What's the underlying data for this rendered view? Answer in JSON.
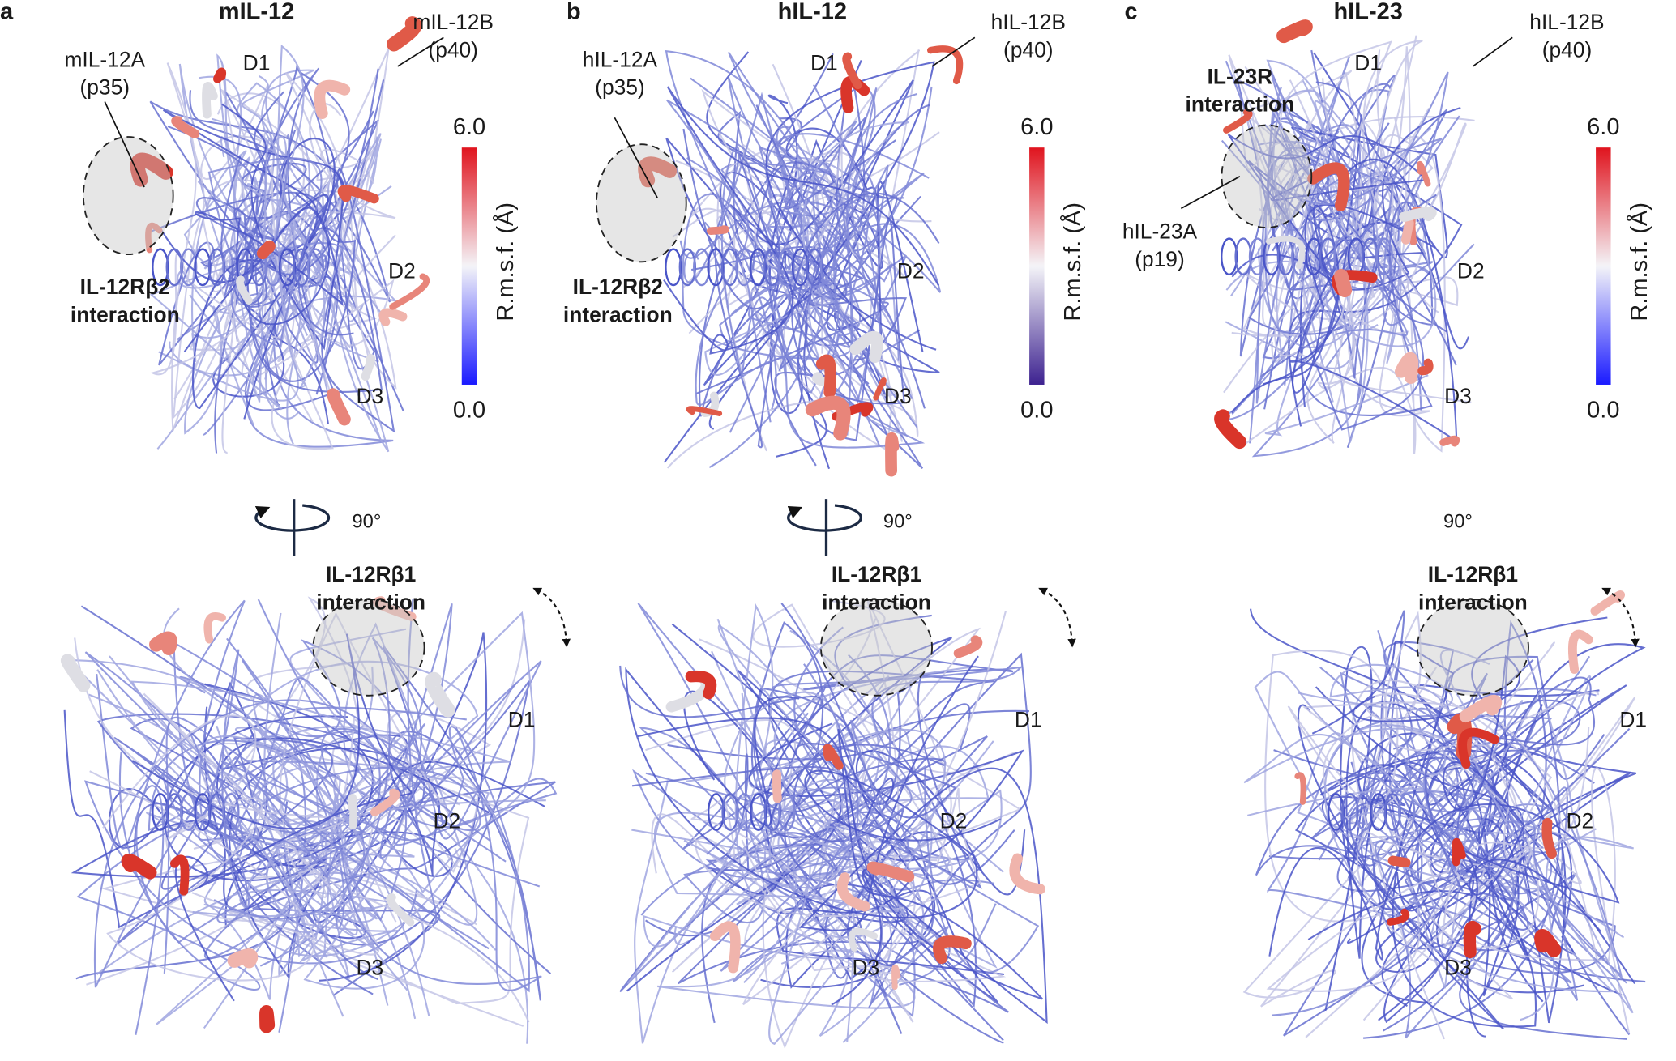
{
  "panels": [
    {
      "letter": "a",
      "title": "mIL-12",
      "subunit_a": [
        "mIL-12A",
        "(p35)"
      ],
      "subunit_b": [
        "mIL-12B",
        "(p40)"
      ],
      "interface_top": [
        "IL-12Rβ2",
        "interaction"
      ],
      "domains_top": [
        "D1",
        "D2",
        "D3"
      ],
      "colorbar": {
        "label": "R.m.s.f. (Å)",
        "max": "6.0",
        "min": "0.0"
      },
      "rotation": "90°",
      "interface_bottom": [
        "IL-12Rβ1",
        "interaction"
      ],
      "domains_bottom": [
        "D1",
        "D2",
        "D3"
      ]
    },
    {
      "letter": "b",
      "title": "hIL-12",
      "subunit_a": [
        "hIL-12A",
        "(p35)"
      ],
      "subunit_b": [
        "hIL-12B",
        "(p40)"
      ],
      "interface_top": [
        "IL-12Rβ2",
        "interaction"
      ],
      "domains_top": [
        "D1",
        "D2",
        "D3"
      ],
      "colorbar": {
        "label": "R.m.s.f. (Å)",
        "max": "6.0",
        "min": "0.0"
      },
      "rotation": "90°",
      "interface_bottom": [
        "IL-12Rβ1",
        "interaction"
      ],
      "domains_bottom": [
        "D1",
        "D2",
        "D3"
      ]
    },
    {
      "letter": "c",
      "title": "hIL-23",
      "subunit_a": [
        "hIL-23A",
        "(p19)"
      ],
      "subunit_b": [
        "hIL-12B",
        "(p40)"
      ],
      "interface_top": [
        "IL-23R",
        "interaction"
      ],
      "domains_top": [
        "D1",
        "D2",
        "D3"
      ],
      "colorbar": {
        "label": "R.m.s.f. (Å)",
        "max": "6.0",
        "min": "0.0"
      },
      "rotation": "90°",
      "interface_bottom": [
        "IL-12Rβ1",
        "interaction"
      ],
      "domains_bottom": [
        "D1",
        "D2",
        "D3"
      ]
    }
  ]
}
